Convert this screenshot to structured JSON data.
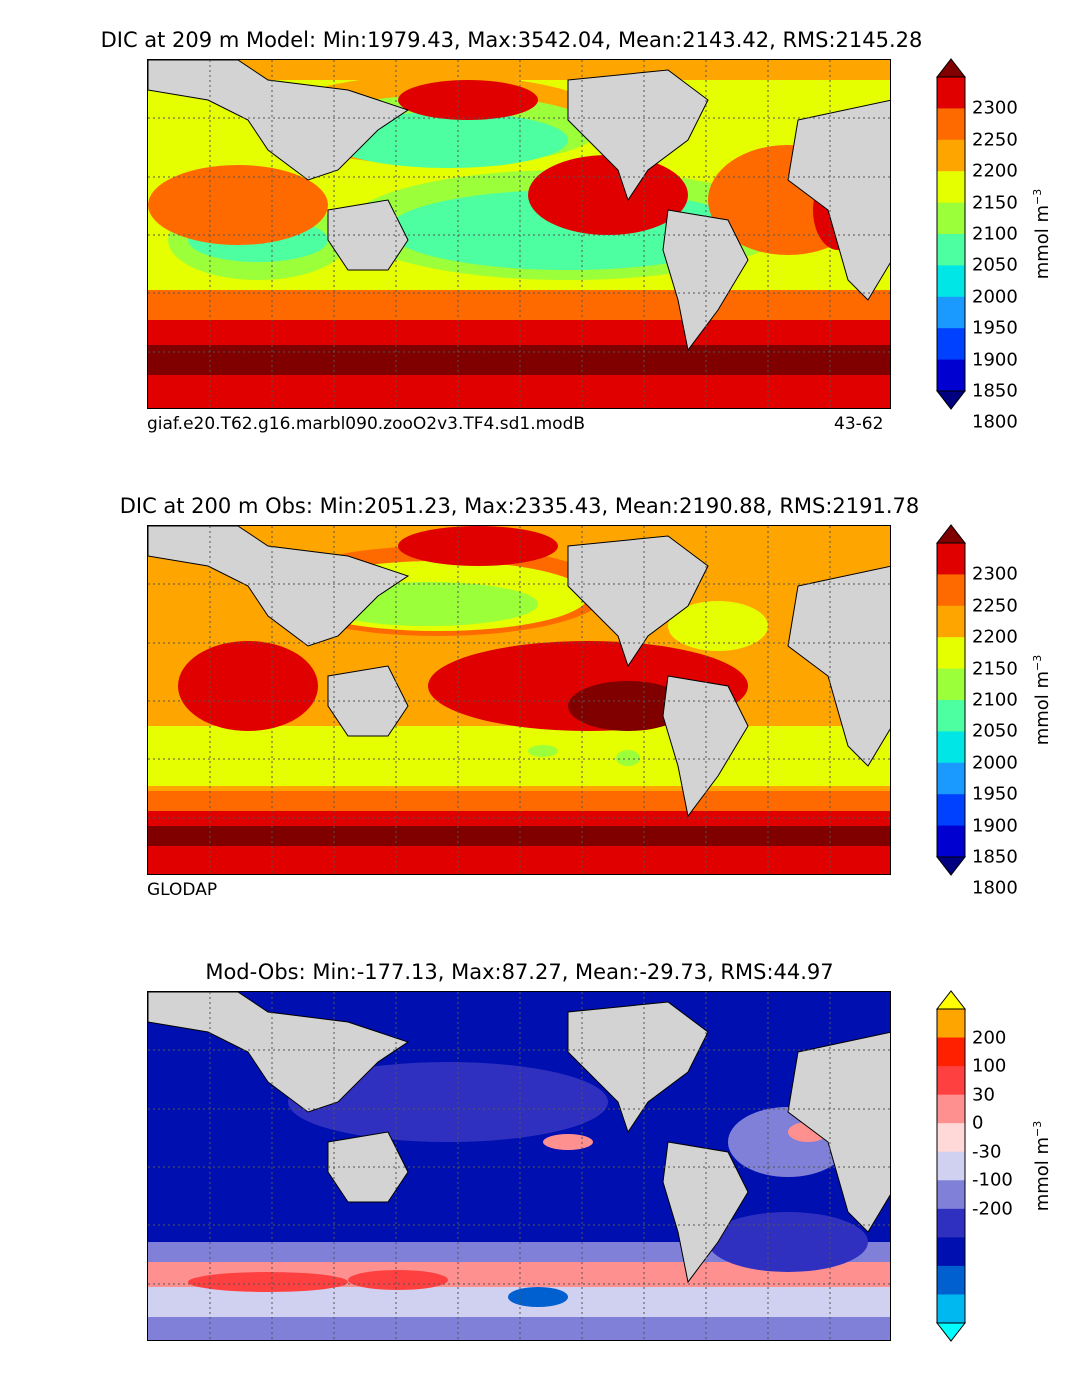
{
  "chart_data": [
    {
      "type": "heatmap",
      "title": "DIC at 209 m Model: Min:1979.43, Max:3542.04, Mean:2143.42, RMS:2145.28",
      "caption_left": "giaf.e20.T62.g16.marbl090.zooO2v3.TF4.sd1.modB",
      "caption_right": "43-62",
      "colorbar": {
        "label": "mmol m",
        "label_exp": "−3",
        "ticks": [
          "2300",
          "2250",
          "2200",
          "2150",
          "2100",
          "2050",
          "2000",
          "1950",
          "1900",
          "1850",
          "1800"
        ],
        "colors": [
          "#800000",
          "#e00000",
          "#ff6a00",
          "#ffa500",
          "#e6ff00",
          "#9bff3a",
          "#4dffa0",
          "#00e6e6",
          "#1a9aff",
          "#0040ff",
          "#0000d0",
          "#000080"
        ],
        "extend": "both"
      },
      "stats": {
        "min": 1979.43,
        "max": 3542.04,
        "mean": 2143.42,
        "rms": 2145.28
      }
    },
    {
      "type": "heatmap",
      "title": "DIC at 200 m Obs: Min:2051.23, Max:2335.43, Mean:2190.88, RMS:2191.78",
      "caption_left": "GLODAP",
      "caption_right": "",
      "colorbar": {
        "label": "mmol m",
        "label_exp": "−3",
        "ticks": [
          "2300",
          "2250",
          "2200",
          "2150",
          "2100",
          "2050",
          "2000",
          "1950",
          "1900",
          "1850",
          "1800"
        ],
        "colors": [
          "#800000",
          "#e00000",
          "#ff6a00",
          "#ffa500",
          "#e6ff00",
          "#9bff3a",
          "#4dffa0",
          "#00e6e6",
          "#1a9aff",
          "#0040ff",
          "#0000d0",
          "#000080"
        ],
        "extend": "both"
      },
      "stats": {
        "min": 2051.23,
        "max": 2335.43,
        "mean": 2190.88,
        "rms": 2191.78
      }
    },
    {
      "type": "heatmap",
      "title": "Mod-Obs: Min:-177.13, Max:87.27, Mean:-29.73, RMS:44.97",
      "caption_left": "",
      "caption_right": "",
      "colorbar": {
        "label": "mmol m",
        "label_exp": "−3",
        "ticks": [
          "200",
          "100",
          "30",
          "0",
          "-30",
          "-100",
          "-200"
        ],
        "colors": [
          "#ffff00",
          "#ffa500",
          "#ff2000",
          "#ff4040",
          "#ff9090",
          "#ffd8d8",
          "#d0d0f0",
          "#8080d8",
          "#3030c0",
          "#0010b0",
          "#0060d0",
          "#00b8f0",
          "#00ffff"
        ],
        "extend": "both"
      },
      "stats": {
        "min": -177.13,
        "max": 87.27,
        "mean": -29.73,
        "rms": 44.97
      }
    }
  ],
  "colors": {
    "land": "#d3d3d3",
    "grid": "#555555",
    "ice": "#ffffff"
  }
}
